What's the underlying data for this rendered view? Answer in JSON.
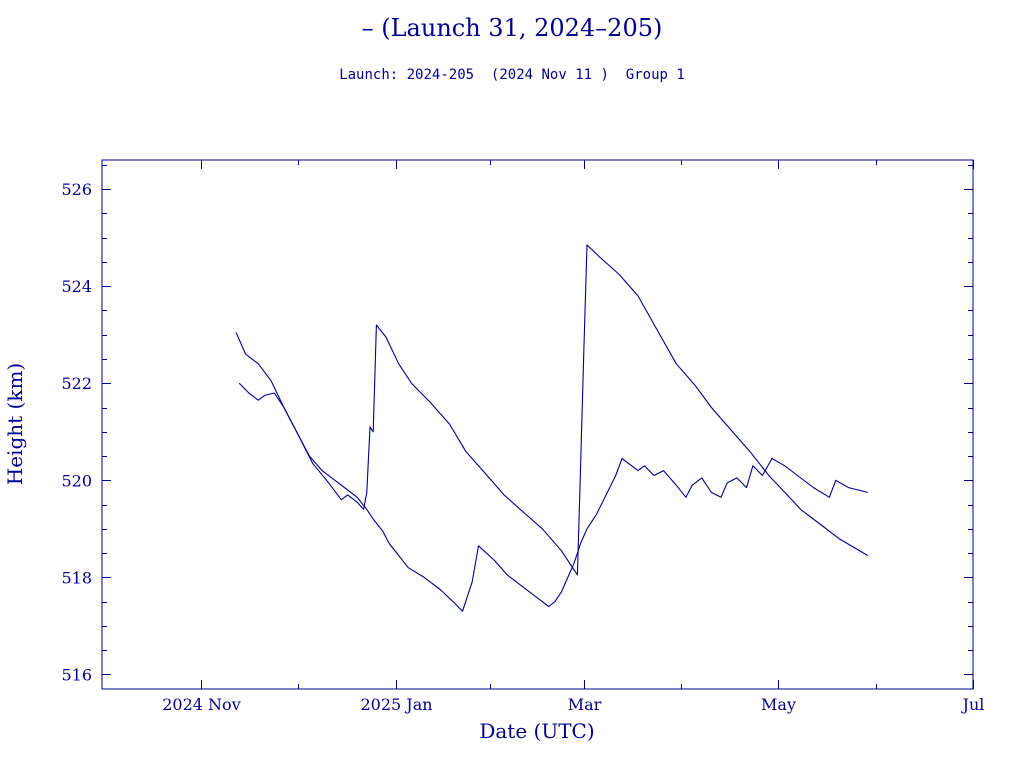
{
  "title": "– (Launch 31, 2024–205)",
  "subtitle": "Launch: 2024-205  (2024 Nov 11 )  Group 1",
  "chart_data": {
    "type": "line",
    "xlabel": "Date (UTC)",
    "ylabel": "Height (km)",
    "xlim": [
      "2024-10-01",
      "2025-07-01"
    ],
    "ylim": [
      515.7,
      526.6
    ],
    "x_ticks": [
      {
        "date": "2024-11-01",
        "label": "2024 Nov"
      },
      {
        "date": "2025-01-01",
        "label": "2025 Jan"
      },
      {
        "date": "2025-03-01",
        "label": "Mar"
      },
      {
        "date": "2025-05-01",
        "label": "May"
      },
      {
        "date": "2025-07-01",
        "label": "Jul"
      }
    ],
    "y_ticks": [
      516,
      518,
      520,
      522,
      524,
      526
    ],
    "line_color": "#00008b",
    "series": [
      {
        "values": [
          [
            "2024-11-12",
            523.05
          ],
          [
            "2024-11-15",
            522.6
          ],
          [
            "2024-11-19",
            522.4
          ],
          [
            "2024-11-23",
            522.05
          ],
          [
            "2024-11-27",
            521.5
          ],
          [
            "2024-12-01",
            521.0
          ],
          [
            "2024-12-05",
            520.5
          ],
          [
            "2024-12-09",
            520.2
          ],
          [
            "2024-12-13",
            520.0
          ],
          [
            "2024-12-17",
            519.8
          ],
          [
            "2024-12-20",
            519.65
          ],
          [
            "2024-12-23",
            519.4
          ],
          [
            "2024-12-25",
            519.2
          ],
          [
            "2024-12-28",
            518.95
          ],
          [
            "2024-12-30",
            518.7
          ],
          [
            "2025-01-02",
            518.45
          ],
          [
            "2025-01-05",
            518.2
          ],
          [
            "2025-01-10",
            518.0
          ],
          [
            "2025-01-15",
            517.75
          ],
          [
            "2025-01-19",
            517.5
          ],
          [
            "2025-01-22",
            517.3
          ],
          [
            "2025-01-25",
            517.9
          ],
          [
            "2025-01-27",
            518.65
          ],
          [
            "2025-02-01",
            518.35
          ],
          [
            "2025-02-05",
            518.05
          ],
          [
            "2025-02-10",
            517.8
          ],
          [
            "2025-02-15",
            517.55
          ],
          [
            "2025-02-18",
            517.4
          ],
          [
            "2025-02-20",
            517.5
          ],
          [
            "2025-02-22",
            517.7
          ],
          [
            "2025-02-24",
            518.0
          ],
          [
            "2025-02-26",
            518.3
          ],
          [
            "2025-02-28",
            518.7
          ],
          [
            "2025-03-02",
            519.0
          ],
          [
            "2025-03-05",
            519.3
          ],
          [
            "2025-03-08",
            519.7
          ],
          [
            "2025-03-11",
            520.1
          ],
          [
            "2025-03-13",
            520.45
          ],
          [
            "2025-03-18",
            520.2
          ],
          [
            "2025-03-20",
            520.3
          ],
          [
            "2025-03-23",
            520.1
          ],
          [
            "2025-03-26",
            520.2
          ],
          [
            "2025-03-30",
            519.9
          ],
          [
            "2025-04-02",
            519.65
          ],
          [
            "2025-04-04",
            519.9
          ],
          [
            "2025-04-07",
            520.05
          ],
          [
            "2025-04-10",
            519.75
          ],
          [
            "2025-04-13",
            519.65
          ],
          [
            "2025-04-15",
            519.95
          ],
          [
            "2025-04-18",
            520.05
          ],
          [
            "2025-04-21",
            519.85
          ],
          [
            "2025-04-23",
            520.3
          ],
          [
            "2025-04-26",
            520.1
          ],
          [
            "2025-04-29",
            520.45
          ],
          [
            "2025-05-03",
            520.3
          ],
          [
            "2025-05-07",
            520.1
          ],
          [
            "2025-05-12",
            519.85
          ],
          [
            "2025-05-17",
            519.65
          ],
          [
            "2025-05-19",
            520.0
          ],
          [
            "2025-05-23",
            519.85
          ],
          [
            "2025-05-29",
            519.75
          ]
        ]
      },
      {
        "values": [
          [
            "2024-11-13",
            522.0
          ],
          [
            "2024-11-16",
            521.8
          ],
          [
            "2024-11-19",
            521.65
          ],
          [
            "2024-11-21",
            521.75
          ],
          [
            "2024-11-24",
            521.8
          ],
          [
            "2024-11-27",
            521.5
          ],
          [
            "2024-12-01",
            521.0
          ],
          [
            "2024-12-06",
            520.35
          ],
          [
            "2024-12-11",
            519.95
          ],
          [
            "2024-12-15",
            519.6
          ],
          [
            "2024-12-17",
            519.7
          ],
          [
            "2024-12-20",
            519.55
          ],
          [
            "2024-12-22",
            519.4
          ],
          [
            "2024-12-23",
            519.75
          ],
          [
            "2024-12-24",
            521.1
          ],
          [
            "2024-12-25",
            521.0
          ],
          [
            "2024-12-26",
            523.2
          ],
          [
            "2024-12-29",
            522.95
          ],
          [
            "2025-01-02",
            522.4
          ],
          [
            "2025-01-06",
            522.0
          ],
          [
            "2025-01-12",
            521.6
          ],
          [
            "2025-01-18",
            521.15
          ],
          [
            "2025-01-23",
            520.6
          ],
          [
            "2025-01-29",
            520.15
          ],
          [
            "2025-02-04",
            519.7
          ],
          [
            "2025-02-10",
            519.35
          ],
          [
            "2025-02-16",
            519.0
          ],
          [
            "2025-02-22",
            518.55
          ],
          [
            "2025-02-27",
            518.05
          ],
          [
            "2025-02-28",
            520.3
          ],
          [
            "2025-03-01",
            522.65
          ],
          [
            "2025-03-02",
            524.85
          ],
          [
            "2025-03-06",
            524.6
          ],
          [
            "2025-03-12",
            524.25
          ],
          [
            "2025-03-18",
            523.8
          ],
          [
            "2025-03-24",
            523.1
          ],
          [
            "2025-03-30",
            522.4
          ],
          [
            "2025-04-05",
            521.95
          ],
          [
            "2025-04-10",
            521.5
          ],
          [
            "2025-04-16",
            521.05
          ],
          [
            "2025-04-22",
            520.6
          ],
          [
            "2025-04-28",
            520.1
          ],
          [
            "2025-05-03",
            519.75
          ],
          [
            "2025-05-08",
            519.4
          ],
          [
            "2025-05-14",
            519.1
          ],
          [
            "2025-05-20",
            518.8
          ],
          [
            "2025-05-29",
            518.45
          ]
        ]
      }
    ]
  }
}
